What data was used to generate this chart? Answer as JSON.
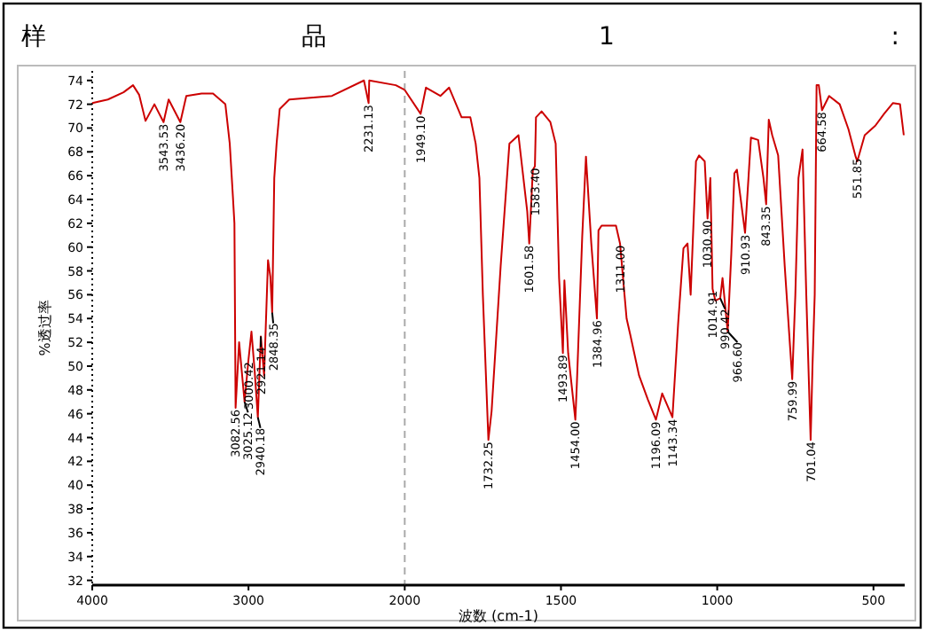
{
  "chart_data": [
    {
      "type": "line",
      "title": "样 品 1 :",
      "ylabel": "%透过率",
      "xlim": [
        4000,
        2000
      ],
      "xticks": [
        4000,
        3000,
        2000
      ],
      "ylim": [
        31.6,
        74.8
      ],
      "yticks": [
        32,
        34,
        36,
        38,
        40,
        42,
        44,
        46,
        48,
        50,
        52,
        54,
        56,
        58,
        60,
        62,
        64,
        66,
        68,
        70,
        72,
        74
      ],
      "grid": false,
      "marker": "none",
      "line_style": "solid",
      "ref_lines": [
        {
          "axis": "x",
          "value": 2000,
          "color": "#aaaaaa",
          "line_style": "dashed"
        }
      ],
      "series": [
        {
          "color": "#cc0000",
          "x": [
            4000,
            3900,
            3800,
            3739,
            3700,
            3659,
            3602,
            3543.53,
            3511,
            3436.2,
            3398,
            3300,
            3227,
            3148,
            3120,
            3100,
            3090,
            3082.56,
            3060,
            3025.12,
            3000.42,
            2981,
            2960,
            2940.18,
            2921.14,
            2900,
            2875,
            2860,
            2848.35,
            2835,
            2820,
            2800,
            2739,
            2466,
            2261,
            2231.13,
            2227,
            2057,
            2000
          ],
          "values": [
            72.1,
            72.4,
            73.0,
            73.6,
            72.8,
            70.6,
            72.0,
            70.5,
            72.4,
            70.5,
            72.7,
            72.9,
            72.9,
            72.0,
            68.7,
            64.3,
            62,
            46.5,
            52,
            47,
            50.5,
            52.9,
            49.5,
            45.7,
            52.5,
            49.2,
            58.9,
            57.5,
            54.5,
            65.8,
            68.7,
            71.6,
            72.4,
            72.7,
            74.0,
            72.1,
            74.0,
            73.6,
            73.2
          ]
        }
      ],
      "annotations": [
        {
          "text": "3543.53",
          "x": 3543.53,
          "y": 70.5
        },
        {
          "text": "3436.20",
          "x": 3436.2,
          "y": 70.5
        },
        {
          "text": "3082.56",
          "x": 3082.56,
          "y": 46.5
        },
        {
          "text": "3025.12",
          "x": 3025.12,
          "y": 47
        },
        {
          "text": "3000.42",
          "x": 3000.42,
          "y": 50.5
        },
        {
          "text": "2921.14",
          "x": 2921.14,
          "y": 52.5
        },
        {
          "text": "2940.18",
          "x": 2940.18,
          "y": 45.7
        },
        {
          "text": "2848.35",
          "x": 2848.35,
          "y": 54.5
        },
        {
          "text": "2231.13",
          "x": 2231.13,
          "y": 72.1
        }
      ]
    },
    {
      "type": "line",
      "xlabel": "波数 (cm-1)",
      "tick_labels": "x",
      "xlim": [
        2000,
        400
      ],
      "xticks": [
        1500,
        1000,
        500
      ],
      "ylim": [
        31.6,
        74.8
      ],
      "grid": false,
      "marker": "none",
      "line_style": "solid",
      "series": [
        {
          "color": "#cc0000",
          "x": [
            2000,
            1949.1,
            1932,
            1886,
            1858,
            1818,
            1790,
            1773,
            1761,
            1750,
            1732.25,
            1722,
            1693,
            1665,
            1636,
            1608,
            1601.58,
            1590,
            1583.4,
            1580,
            1562,
            1534,
            1517,
            1506,
            1493.89,
            1489,
            1477,
            1454,
            1449,
            1432,
            1420,
            1403,
            1384.96,
            1380,
            1370,
            1324,
            1311,
            1290,
            1278,
            1250,
            1222,
            1196.09,
            1176,
            1143.34,
            1125,
            1108,
            1095,
            1085,
            1068,
            1058,
            1040,
            1030.9,
            1022,
            1014.91,
            1006,
            990.42,
            983,
            966.6,
            955,
            945,
            937,
            910.93,
            900,
            892,
            869,
            852,
            843.35,
            835,
            824,
            805,
            784,
            759.99,
            750,
            740,
            727,
            715,
            701.04,
            695,
            688,
            682,
            675,
            664.58,
            642,
            608,
            580,
            557,
            551.85,
            528,
            494,
            466,
            438,
            415,
            403
          ],
          "values": [
            73.2,
            71.2,
            73.4,
            72.7,
            73.4,
            70.9,
            70.9,
            68.7,
            65.8,
            56.0,
            43.8,
            46.2,
            58.4,
            68.7,
            69.4,
            63,
            60.3,
            66.5,
            66.8,
            70.9,
            71.4,
            70.5,
            68.7,
            57.4,
            51.1,
            57.2,
            51.1,
            45.5,
            48.6,
            60.9,
            67.6,
            60.3,
            54.0,
            61.4,
            61.8,
            61.8,
            60.3,
            54.0,
            52.6,
            49.2,
            47.2,
            45.5,
            47.7,
            45.7,
            53.6,
            59.9,
            60.3,
            56.0,
            67.2,
            67.7,
            67.2,
            62.4,
            65.8,
            56.5,
            55.5,
            55.7,
            57.4,
            52.9,
            59.4,
            66.2,
            66.5,
            61.2,
            65.8,
            69.2,
            69.0,
            65.8,
            63.6,
            70.7,
            69.4,
            67.7,
            58.4,
            48.9,
            56.0,
            65.8,
            68.2,
            56.0,
            43.8,
            50.1,
            56.0,
            73.6,
            73.6,
            71.5,
            72.7,
            72.0,
            69.9,
            67.6,
            67.2,
            69.4,
            70.2,
            71.2,
            72.1,
            72.0,
            69.4
          ]
        }
      ],
      "annotations": [
        {
          "text": "1949.10",
          "x": 1949.1,
          "y": 71.2
        },
        {
          "text": "1732.25",
          "x": 1732.25,
          "y": 43.8
        },
        {
          "text": "1601.58",
          "x": 1601.58,
          "y": 60.3
        },
        {
          "text": "1583.40",
          "x": 1583.4,
          "y": 66.8
        },
        {
          "text": "1493.89",
          "x": 1493.89,
          "y": 51.1
        },
        {
          "text": "1454.00",
          "x": 1454,
          "y": 45.5
        },
        {
          "text": "1384.96",
          "x": 1384.96,
          "y": 54.0
        },
        {
          "text": "1311.00",
          "x": 1311,
          "y": 60.3
        },
        {
          "text": "1196.09",
          "x": 1196.09,
          "y": 45.5
        },
        {
          "text": "1143.34",
          "x": 1143.34,
          "y": 45.7
        },
        {
          "text": "1030.90",
          "x": 1030.9,
          "y": 62.4
        },
        {
          "text": "1014.91",
          "x": 1014.91,
          "y": 56.5
        },
        {
          "text": "990.42",
          "x": 990.42,
          "y": 55.7
        },
        {
          "text": "966.60",
          "x": 966.6,
          "y": 52.9
        },
        {
          "text": "910.93",
          "x": 910.93,
          "y": 61.2
        },
        {
          "text": "843.35",
          "x": 843.35,
          "y": 63.6
        },
        {
          "text": "759.99",
          "x": 759.99,
          "y": 48.9
        },
        {
          "text": "701.04",
          "x": 701.04,
          "y": 43.8
        },
        {
          "text": "664.58",
          "x": 664.58,
          "y": 71.5
        },
        {
          "text": "551.85",
          "x": 551.85,
          "y": 67.6
        }
      ]
    }
  ]
}
